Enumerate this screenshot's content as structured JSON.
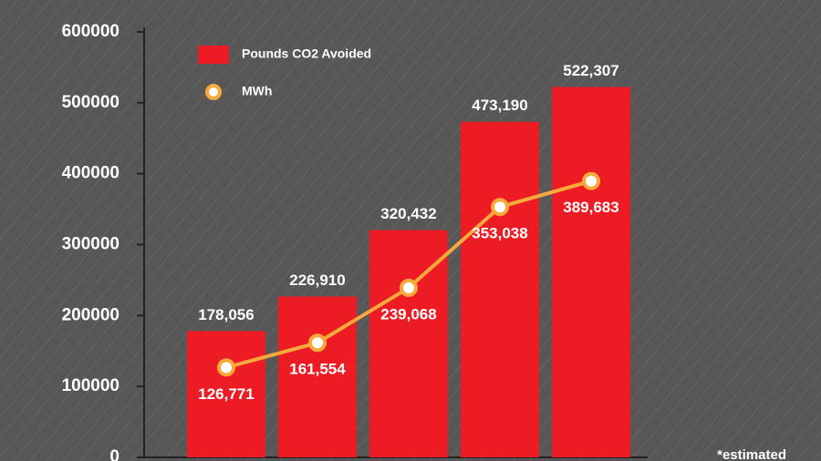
{
  "chart_data": {
    "type": "bar",
    "categories": [
      null,
      null,
      null,
      null,
      null
    ],
    "series": [
      {
        "name": "Pounds CO2 Avoided",
        "type": "bar",
        "color": "#ed1c24",
        "values": [
          178056,
          226910,
          320432,
          473190,
          522307
        ],
        "value_labels": [
          "178,056",
          "226,910",
          "320,432",
          "473,190",
          "522,307"
        ]
      },
      {
        "name": "MWh",
        "type": "line",
        "color": "#f7a93b",
        "values": [
          126771,
          161554,
          239068,
          353038,
          389683
        ],
        "value_labels": [
          "126,771",
          "161,554",
          "239,068",
          "353,038",
          "389,683"
        ]
      }
    ],
    "ylim": [
      0,
      600000
    ],
    "yticks": [
      0,
      100000,
      200000,
      300000,
      400000,
      500000,
      600000
    ],
    "annotation": "*estimated"
  }
}
